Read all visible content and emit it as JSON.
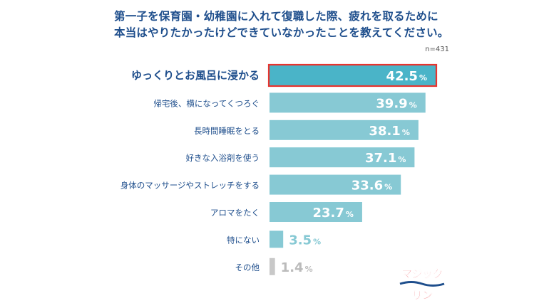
{
  "title_lines": [
    "第一子を保育園・幼稚園に入れて復職した際、疲れを取るために",
    "本当はやりたかったけどできていなかったことを教えてください。"
  ],
  "sample_size": "n=431",
  "colors": {
    "bar": "#87c9d4",
    "highlight_bar": "#4ab4c8",
    "highlight_border": "#e8342e",
    "minor_bar": "#c8c8c8",
    "label_text": "#1e4e8c",
    "value_text_inside": "#ffffff",
    "value_text_outside": "#87c9d4",
    "value_text_minor": "#bbbbbb"
  },
  "chart_data": {
    "type": "bar",
    "orientation": "horizontal",
    "categories": [
      "ゆっくりとお風呂に浸かる",
      "帰宅後、横になってくつろぐ",
      "長時間睡眠をとる",
      "好きな入浴剤を使う",
      "身体のマッサージやストレッチをする",
      "アロマをたく",
      "特にない",
      "その他"
    ],
    "values": [
      42.5,
      39.9,
      38.1,
      37.1,
      33.6,
      23.7,
      3.5,
      1.4
    ],
    "value_labels": [
      "42.5",
      "39.9",
      "38.1",
      "37.1",
      "33.6",
      "23.7",
      "3.5",
      "1.4"
    ],
    "unit": "%",
    "highlighted_index": 0,
    "xlim": [
      0,
      42.5
    ],
    "grid": false,
    "legend": "none"
  },
  "logo": {
    "text": "マジックリン",
    "icon": "magiclean-logo"
  }
}
